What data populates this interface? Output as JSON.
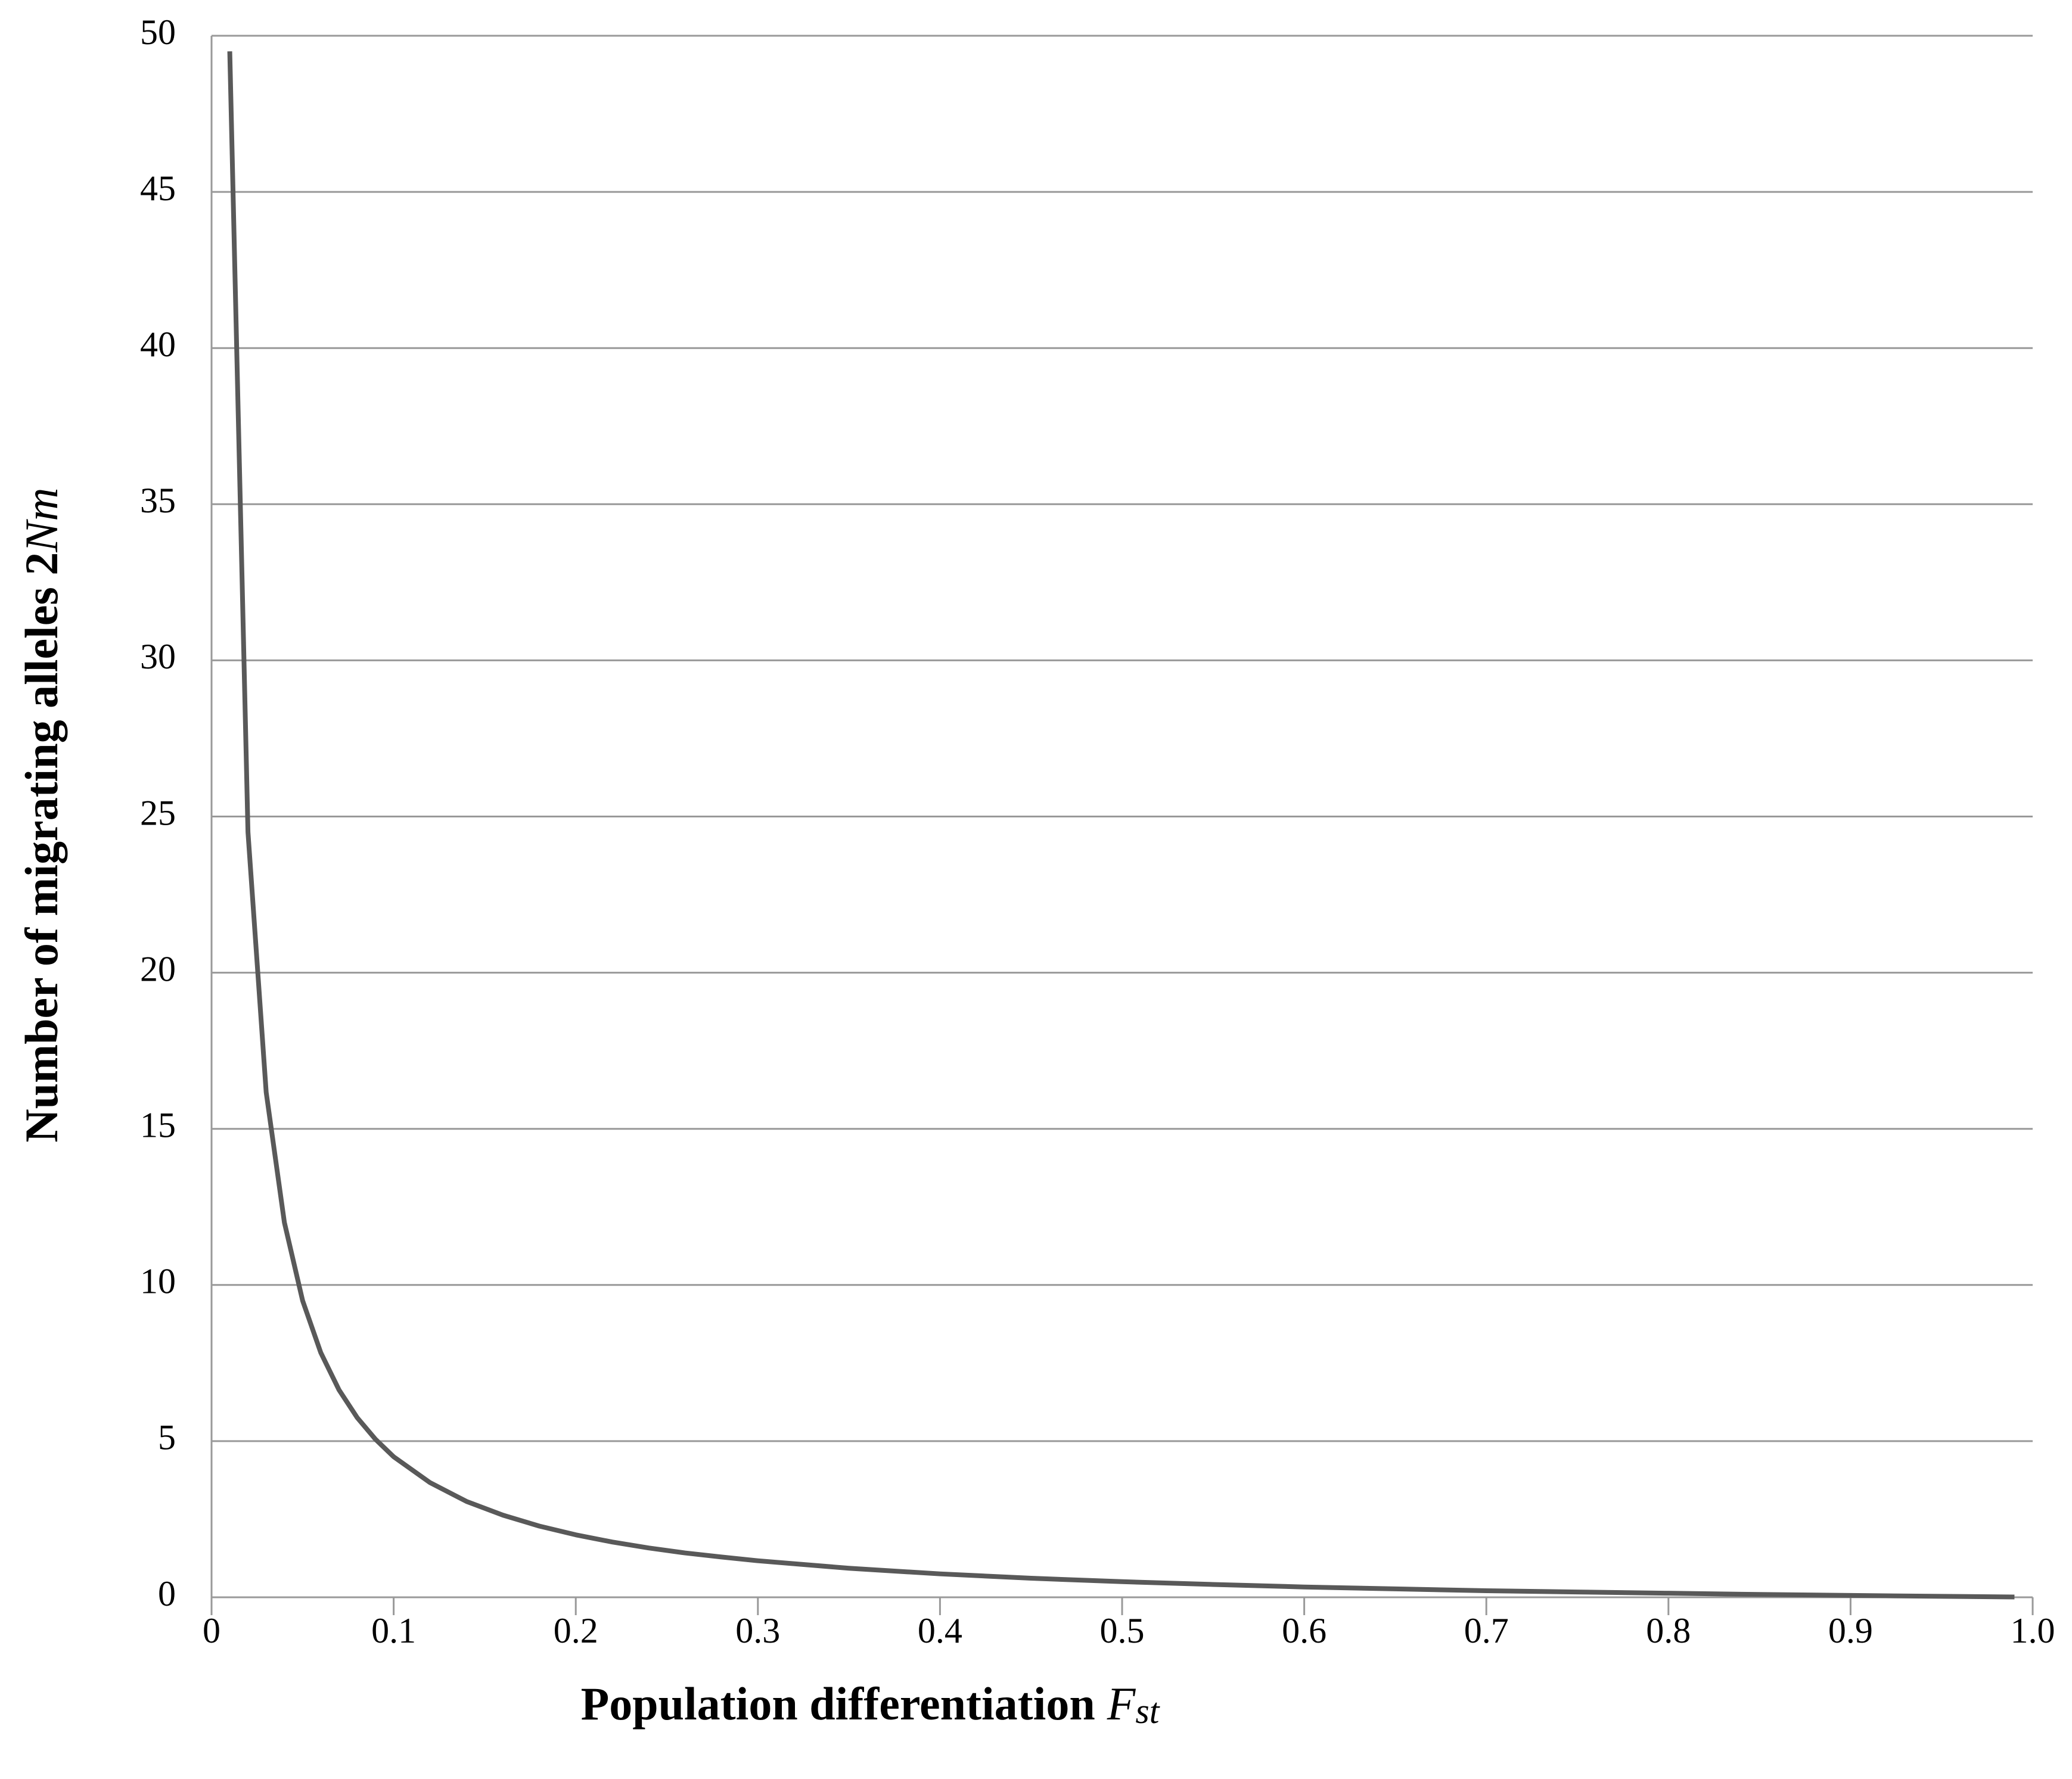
{
  "chart_data": {
    "type": "line",
    "xlabel": [
      "Population differentiation",
      "F",
      "st"
    ],
    "ylabel": [
      "Number of migrating alleles 2",
      "Nm"
    ],
    "x": [
      0.01,
      0.02,
      0.03,
      0.04,
      0.05,
      0.06,
      0.07,
      0.08,
      0.09,
      0.1,
      0.12,
      0.14,
      0.16,
      0.18,
      0.2,
      0.22,
      0.24,
      0.26,
      0.28,
      0.3,
      0.35,
      0.4,
      0.45,
      0.5,
      0.55,
      0.6,
      0.65,
      0.7,
      0.75,
      0.8,
      0.85,
      0.9,
      0.95,
      0.99
    ],
    "series": [
      {
        "color": "#595959",
        "values": [
          49.5,
          24.5,
          16.17,
          12,
          9.5,
          7.83,
          6.64,
          5.75,
          5.06,
          4.5,
          3.67,
          3.07,
          2.63,
          2.28,
          2,
          1.77,
          1.58,
          1.42,
          1.29,
          1.17,
          0.93,
          0.75,
          0.61,
          0.5,
          0.41,
          0.33,
          0.27,
          0.21,
          0.17,
          0.13,
          0.09,
          0.06,
          0.03,
          0.01
        ]
      }
    ],
    "xlim": [
      0,
      1
    ],
    "xticks": [
      0,
      0.1,
      0.2,
      0.3,
      0.4,
      0.5,
      0.6,
      0.7,
      0.8,
      0.9,
      {
        "value": 1,
        "label": "1.0"
      }
    ],
    "ylim": [
      0,
      50
    ],
    "yticks": [
      0,
      5,
      10,
      15,
      20,
      25,
      30,
      35,
      40,
      45,
      50
    ],
    "grid": true
  }
}
